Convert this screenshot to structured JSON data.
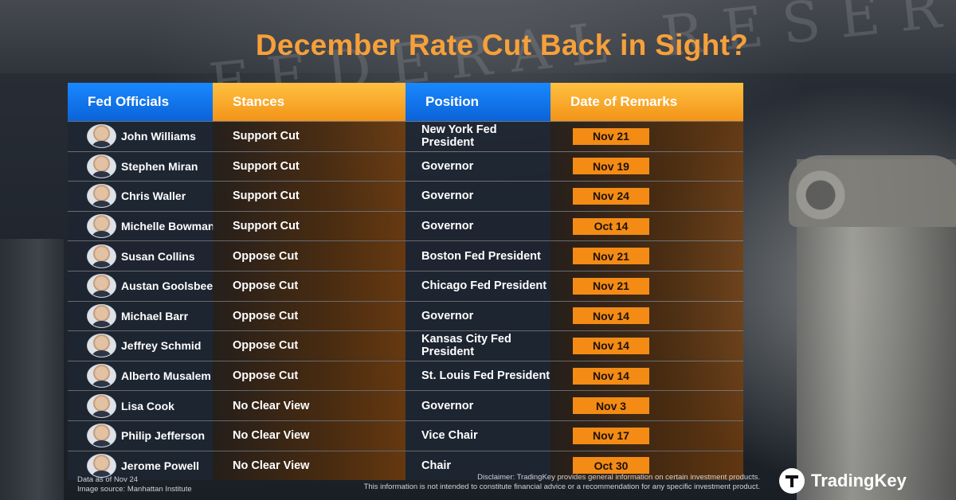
{
  "title": "December Rate Cut Back in Sight?",
  "background_text": "FEDERAL RESERVE",
  "colors": {
    "accent": "#f7a03a",
    "header_blue": "#0b63d8",
    "header_orange": "#f39418",
    "date_pill": "#f38b15"
  },
  "table": {
    "headers": [
      "Fed Officials",
      "Stances",
      "Position",
      "Date of Remarks"
    ],
    "rows": [
      {
        "name": "John Williams",
        "stance": "Support Cut",
        "position": "New York Fed President",
        "date": "Nov 21"
      },
      {
        "name": "Stephen Miran",
        "stance": "Support Cut",
        "position": "Governor",
        "date": "Nov 19"
      },
      {
        "name": "Chris Waller",
        "stance": "Support Cut",
        "position": "Governor",
        "date": "Nov 24"
      },
      {
        "name": "Michelle Bowman",
        "stance": "Support Cut",
        "position": "Governor",
        "date": "Oct 14"
      },
      {
        "name": "Susan Collins",
        "stance": "Oppose Cut",
        "position": "Boston Fed President",
        "date": "Nov 21"
      },
      {
        "name": "Austan Goolsbee",
        "stance": "Oppose Cut",
        "position": "Chicago Fed President",
        "date": "Nov 21"
      },
      {
        "name": "Michael Barr",
        "stance": "Oppose Cut",
        "position": "Governor",
        "date": "Nov 14"
      },
      {
        "name": "Jeffrey Schmid",
        "stance": "Oppose Cut",
        "position": "Kansas City Fed President",
        "date": "Nov 14"
      },
      {
        "name": "Alberto Musalem",
        "stance": "Oppose Cut",
        "position": "St. Louis Fed President",
        "date": "Nov 14"
      },
      {
        "name": "Lisa Cook",
        "stance": "No Clear View",
        "position": "Governor",
        "date": "Nov 3"
      },
      {
        "name": "Philip Jefferson",
        "stance": "No Clear View",
        "position": "Vice Chair",
        "date": "Nov 17"
      },
      {
        "name": "Jerome Powell",
        "stance": "No Clear View",
        "position": "Chair",
        "date": "Oct 30"
      }
    ]
  },
  "footer": {
    "data_note": "Data as of Nov 24",
    "image_source": "Image source:  Manhattan Institute",
    "disclaimer_line1": "Disclaimer: TradingKey provides general information on certain investment products.",
    "disclaimer_line2": "This information is not intended to constitute financial advice or a recommendation for any specific investment product."
  },
  "logo": {
    "text": "TradingKey",
    "icon": "tradingkey-logo-icon"
  }
}
